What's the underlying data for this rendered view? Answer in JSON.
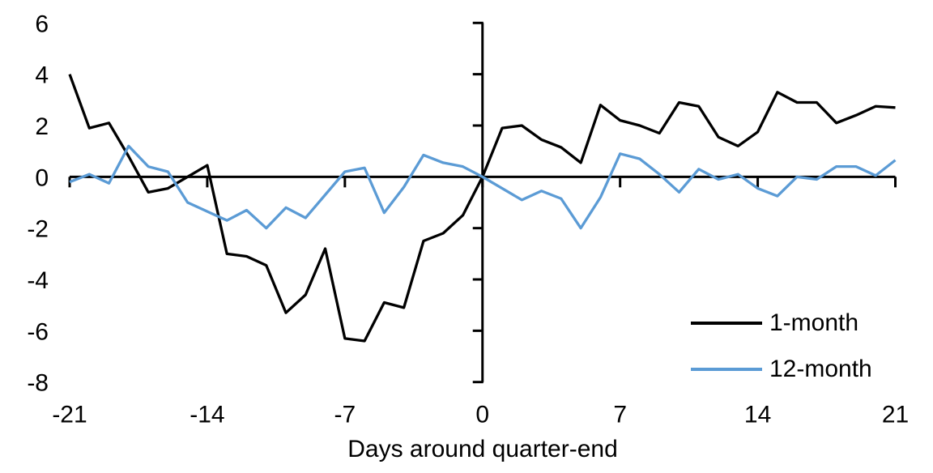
{
  "chart_data": {
    "type": "line",
    "title": "",
    "xlabel": "Days around quarter-end",
    "ylabel": "",
    "xlim": [
      -21,
      21
    ],
    "ylim": [
      -8,
      6
    ],
    "x_ticks": [
      -21,
      -14,
      -7,
      0,
      7,
      14,
      21
    ],
    "y_ticks": [
      6,
      4,
      2,
      0,
      -2,
      -4,
      -6,
      -8
    ],
    "grid": false,
    "legend_position": "inside-lower-right",
    "axis_color": "#000000",
    "x": [
      -21,
      -20,
      -19,
      -18,
      -17,
      -16,
      -15,
      -14,
      -13,
      -12,
      -11,
      -10,
      -9,
      -8,
      -7,
      -6,
      -5,
      -4,
      -3,
      -2,
      -1,
      0,
      1,
      2,
      3,
      4,
      5,
      6,
      7,
      8,
      9,
      10,
      11,
      12,
      13,
      14,
      15,
      16,
      17,
      18,
      19,
      20,
      21
    ],
    "series": [
      {
        "name": "1-month",
        "color": "#000000",
        "values": [
          4.0,
          1.9,
          2.1,
          0.8,
          -0.6,
          -0.45,
          0.0,
          0.45,
          -3.0,
          -3.1,
          -3.45,
          -5.3,
          -4.6,
          -2.8,
          -6.3,
          -6.4,
          -4.9,
          -5.1,
          -2.5,
          -2.2,
          -1.5,
          0.0,
          1.9,
          2.0,
          1.45,
          1.15,
          0.55,
          2.8,
          2.2,
          2.0,
          1.7,
          2.9,
          2.75,
          1.55,
          1.2,
          1.75,
          3.3,
          2.9,
          2.9,
          2.1,
          2.4,
          2.75,
          2.7
        ]
      },
      {
        "name": "12-month",
        "color": "#5B9BD5",
        "values": [
          -0.2,
          0.1,
          -0.25,
          1.2,
          0.4,
          0.2,
          -1.0,
          -1.35,
          -1.7,
          -1.3,
          -2.0,
          -1.2,
          -1.6,
          -0.7,
          0.2,
          0.35,
          -1.4,
          -0.4,
          0.85,
          0.55,
          0.4,
          0.0,
          -0.45,
          -0.9,
          -0.55,
          -0.85,
          -2.0,
          -0.8,
          0.9,
          0.7,
          0.1,
          -0.6,
          0.3,
          -0.1,
          0.1,
          -0.45,
          -0.75,
          0.0,
          -0.1,
          0.4,
          0.4,
          0.05,
          0.65
        ]
      }
    ]
  }
}
